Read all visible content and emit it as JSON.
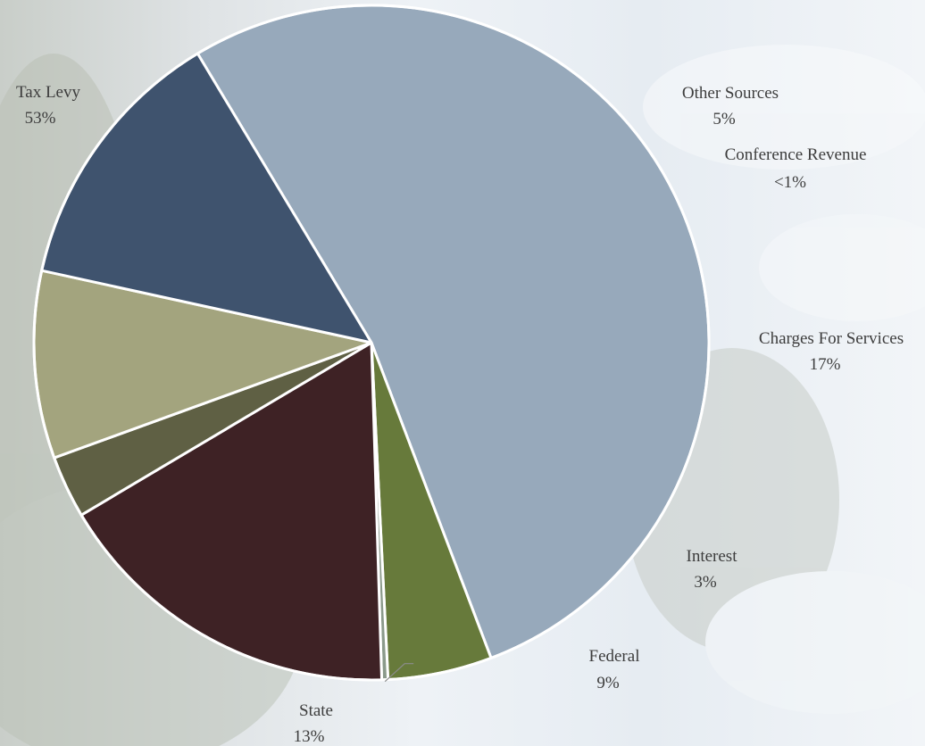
{
  "chart_data": {
    "type": "pie",
    "title": "",
    "slices": [
      {
        "label": "Tax Levy",
        "value": 53,
        "display": "53%",
        "color": "#97a9bb"
      },
      {
        "label": "Other Sources",
        "value": 5,
        "display": "5%",
        "color": "#677a3b"
      },
      {
        "label": "Conference Revenue",
        "value": 0.3,
        "display": "<1%",
        "color": "#8b9a8b"
      },
      {
        "label": "Charges For Services",
        "value": 17,
        "display": "17%",
        "color": "#3e2225"
      },
      {
        "label": "Interest",
        "value": 3,
        "display": "3%",
        "color": "#5f6044"
      },
      {
        "label": "Federal",
        "value": 9,
        "display": "9%",
        "color": "#a3a47e"
      },
      {
        "label": "State",
        "value": 13,
        "display": "13%",
        "color": "#3f536e"
      }
    ]
  }
}
